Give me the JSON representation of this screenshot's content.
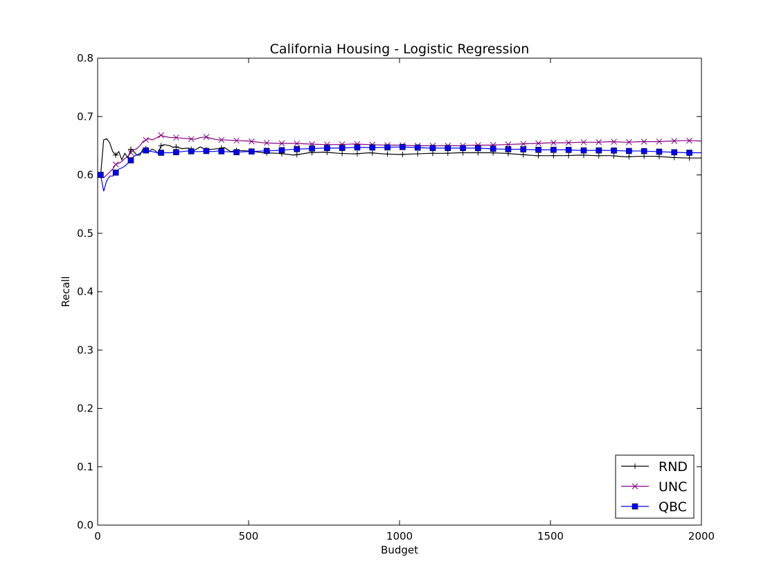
{
  "chart_data": {
    "type": "line",
    "title": "California Housing - Logistic Regression",
    "xlabel": "Budget",
    "ylabel": "Recall",
    "xlim": [
      0,
      2000
    ],
    "ylim": [
      0.0,
      0.8
    ],
    "xticks": [
      0,
      500,
      1000,
      1500,
      2000
    ],
    "xtick_labels": [
      "0",
      "500",
      "1000",
      "1500",
      "2000"
    ],
    "yticks": [
      0.0,
      0.1,
      0.2,
      0.3,
      0.4,
      0.5,
      0.6,
      0.7,
      0.8
    ],
    "ytick_labels": [
      "0.0",
      "0.1",
      "0.2",
      "0.3",
      "0.4",
      "0.5",
      "0.6",
      "0.7",
      "0.8"
    ],
    "grid": false,
    "legend_position": "bottom-right",
    "series": [
      {
        "name": "RND",
        "color": "#000000",
        "marker": "plus",
        "x": [
          10,
          20,
          30,
          40,
          50,
          60,
          70,
          80,
          90,
          100,
          110,
          120,
          130,
          140,
          150,
          160,
          170,
          180,
          190,
          200,
          210,
          220,
          230,
          240,
          250,
          260,
          280,
          300,
          320,
          340,
          360,
          380,
          400,
          420,
          440,
          460,
          500,
          550,
          600,
          650,
          700,
          750,
          800,
          850,
          900,
          950,
          1000,
          1050,
          1100,
          1150,
          1200,
          1250,
          1300,
          1350,
          1400,
          1450,
          1500,
          1550,
          1600,
          1650,
          1700,
          1750,
          1800,
          1850,
          1900,
          1950,
          2000
        ],
        "y": [
          0.6,
          0.66,
          0.662,
          0.655,
          0.64,
          0.634,
          0.64,
          0.626,
          0.637,
          0.629,
          0.644,
          0.64,
          0.634,
          0.634,
          0.644,
          0.645,
          0.64,
          0.644,
          0.642,
          0.637,
          0.65,
          0.652,
          0.651,
          0.65,
          0.647,
          0.648,
          0.645,
          0.646,
          0.642,
          0.648,
          0.643,
          0.644,
          0.645,
          0.647,
          0.64,
          0.642,
          0.641,
          0.638,
          0.637,
          0.634,
          0.638,
          0.639,
          0.637,
          0.636,
          0.638,
          0.636,
          0.635,
          0.636,
          0.637,
          0.637,
          0.638,
          0.638,
          0.638,
          0.637,
          0.635,
          0.633,
          0.633,
          0.633,
          0.634,
          0.633,
          0.633,
          0.631,
          0.632,
          0.632,
          0.63,
          0.629,
          0.629
        ]
      },
      {
        "name": "UNC",
        "color": "#800080",
        "marker": "x",
        "x": [
          10,
          20,
          30,
          40,
          50,
          60,
          70,
          80,
          90,
          100,
          110,
          120,
          130,
          140,
          150,
          160,
          170,
          180,
          190,
          200,
          210,
          220,
          240,
          260,
          280,
          300,
          320,
          340,
          360,
          380,
          400,
          420,
          460,
          500,
          550,
          600,
          650,
          700,
          750,
          800,
          850,
          900,
          950,
          1000,
          1050,
          1100,
          1150,
          1200,
          1250,
          1300,
          1350,
          1400,
          1450,
          1500,
          1550,
          1600,
          1650,
          1700,
          1750,
          1800,
          1850,
          1900,
          1950,
          2000
        ],
        "y": [
          0.6,
          0.595,
          0.6,
          0.605,
          0.61,
          0.618,
          0.62,
          0.623,
          0.628,
          0.632,
          0.638,
          0.643,
          0.645,
          0.65,
          0.657,
          0.66,
          0.662,
          0.66,
          0.662,
          0.665,
          0.668,
          0.666,
          0.664,
          0.664,
          0.663,
          0.662,
          0.661,
          0.664,
          0.665,
          0.662,
          0.66,
          0.66,
          0.659,
          0.658,
          0.655,
          0.654,
          0.654,
          0.653,
          0.652,
          0.652,
          0.653,
          0.652,
          0.651,
          0.651,
          0.65,
          0.65,
          0.65,
          0.65,
          0.651,
          0.651,
          0.652,
          0.653,
          0.654,
          0.655,
          0.655,
          0.656,
          0.656,
          0.657,
          0.656,
          0.657,
          0.657,
          0.658,
          0.659,
          0.658
        ]
      },
      {
        "name": "QBC",
        "color": "#0000ff",
        "marker": "square",
        "x": [
          10,
          20,
          30,
          40,
          50,
          60,
          70,
          80,
          90,
          100,
          110,
          120,
          130,
          140,
          150,
          160,
          180,
          200,
          220,
          240,
          260,
          280,
          300,
          320,
          340,
          360,
          380,
          400,
          420,
          460,
          500,
          550,
          600,
          650,
          700,
          750,
          800,
          850,
          900,
          950,
          1000,
          1050,
          1100,
          1150,
          1200,
          1250,
          1300,
          1350,
          1400,
          1450,
          1500,
          1550,
          1600,
          1650,
          1700,
          1750,
          1800,
          1850,
          1900,
          1950,
          2000
        ],
        "y": [
          0.6,
          0.572,
          0.59,
          0.598,
          0.598,
          0.604,
          0.61,
          0.612,
          0.615,
          0.62,
          0.625,
          0.632,
          0.634,
          0.637,
          0.64,
          0.642,
          0.64,
          0.638,
          0.638,
          0.638,
          0.639,
          0.64,
          0.641,
          0.64,
          0.64,
          0.641,
          0.64,
          0.641,
          0.64,
          0.639,
          0.64,
          0.641,
          0.642,
          0.644,
          0.645,
          0.646,
          0.646,
          0.647,
          0.647,
          0.647,
          0.648,
          0.647,
          0.646,
          0.646,
          0.646,
          0.646,
          0.645,
          0.644,
          0.644,
          0.643,
          0.643,
          0.643,
          0.642,
          0.642,
          0.642,
          0.641,
          0.641,
          0.64,
          0.639,
          0.638,
          0.638
        ]
      }
    ]
  }
}
